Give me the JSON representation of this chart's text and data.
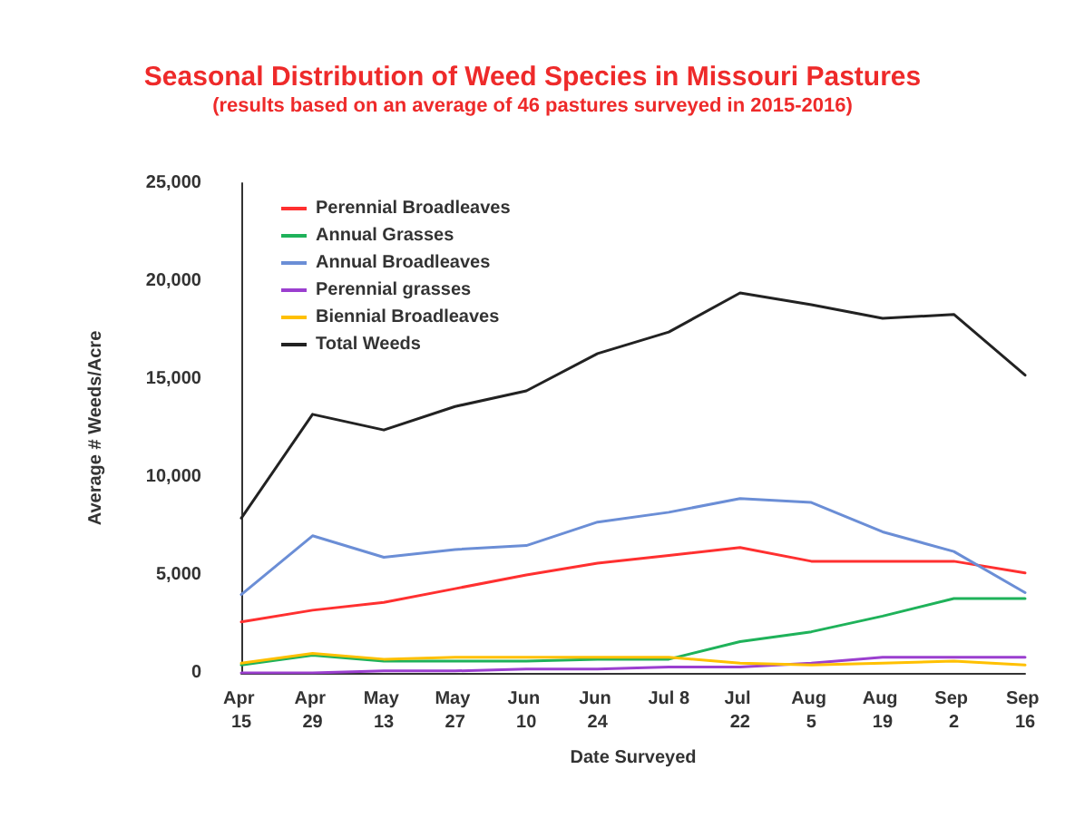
{
  "chart_data": {
    "type": "line",
    "title": "Seasonal Distribution of Weed Species in Missouri Pastures",
    "subtitle": "(results based on an average of 46 pastures surveyed in 2015-2016)",
    "xlabel": "Date Surveyed",
    "ylabel": "Average # Weeds/Acre",
    "categories": [
      "Apr 15",
      "Apr 29",
      "May 13",
      "May 27",
      "Jun 10",
      "Jun 24",
      "Jul 8",
      "Jul 22",
      "Aug 5",
      "Aug 19",
      "Sep 2",
      "Sep 16"
    ],
    "series": [
      {
        "name": "Perennial Broadleaves",
        "color": "#ff3030",
        "values": [
          2600,
          3200,
          3600,
          4300,
          5000,
          5600,
          6000,
          6400,
          5700,
          5700,
          5700,
          5100
        ]
      },
      {
        "name": "Annual Grasses",
        "color": "#1fb25a",
        "values": [
          400,
          900,
          600,
          600,
          600,
          700,
          700,
          1600,
          2100,
          2900,
          3800,
          3800
        ]
      },
      {
        "name": "Annual Broadleaves",
        "color": "#6b8ed6",
        "values": [
          4000,
          7000,
          5900,
          6300,
          6500,
          7700,
          8200,
          8900,
          8700,
          7200,
          6200,
          4100
        ]
      },
      {
        "name": "Perennial grasses",
        "color": "#9b3fcf",
        "values": [
          0,
          0,
          100,
          100,
          200,
          200,
          300,
          300,
          500,
          800,
          800,
          800
        ]
      },
      {
        "name": "Biennial Broadleaves",
        "color": "#ffc000",
        "values": [
          500,
          1000,
          700,
          800,
          800,
          800,
          800,
          500,
          400,
          500,
          600,
          400
        ]
      },
      {
        "name": "Total Weeds",
        "color": "#222222",
        "values": [
          7900,
          13200,
          12400,
          13600,
          14400,
          16300,
          17400,
          19400,
          18800,
          18100,
          18300,
          15200
        ]
      }
    ],
    "ylim": [
      0,
      25000
    ],
    "yticks": [
      {
        "value": 0,
        "label": "0"
      },
      {
        "value": 5000,
        "label": "5,000"
      },
      {
        "value": 10000,
        "label": "10,000"
      },
      {
        "value": 15000,
        "label": "15,000"
      },
      {
        "value": 20000,
        "label": "20,000"
      },
      {
        "value": 25000,
        "label": "25,000"
      }
    ],
    "grid": false,
    "legend": "top left",
    "marker": "none",
    "line_style": "solid"
  }
}
